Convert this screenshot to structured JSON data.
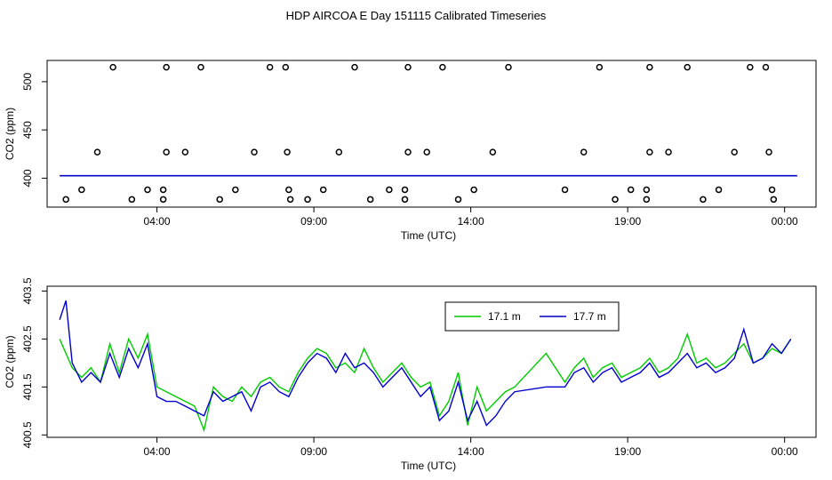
{
  "title": "HDP AIRCOA E  Day 151115  Calibrated Timeseries",
  "colors": {
    "series_a": "#00cc00",
    "series_b": "#0000cc",
    "axis": "#000000"
  },
  "chart_data": [
    {
      "type": "scatter",
      "xlabel": "Time (UTC)",
      "ylabel": "CO2 (ppm)",
      "xlim": [
        -0.5,
        24.0
      ],
      "ylim": [
        370,
        522
      ],
      "xticks": [
        3,
        8,
        13,
        18,
        23
      ],
      "xtick_labels": [
        "04:00",
        "09:00",
        "14:00",
        "19:00",
        "00:00"
      ],
      "yticks": [
        400,
        450,
        500
      ],
      "grid": false,
      "points": [
        {
          "x": 0.1,
          "y": 378
        },
        {
          "x": 0.6,
          "y": 388
        },
        {
          "x": 1.1,
          "y": 427
        },
        {
          "x": 1.6,
          "y": 515
        },
        {
          "x": 2.2,
          "y": 378
        },
        {
          "x": 2.7,
          "y": 388
        },
        {
          "x": 3.2,
          "y": 378
        },
        {
          "x": 3.2,
          "y": 388
        },
        {
          "x": 3.3,
          "y": 427
        },
        {
          "x": 3.3,
          "y": 515
        },
        {
          "x": 3.9,
          "y": 427
        },
        {
          "x": 4.4,
          "y": 515
        },
        {
          "x": 5.0,
          "y": 378
        },
        {
          "x": 5.5,
          "y": 388
        },
        {
          "x": 6.1,
          "y": 427
        },
        {
          "x": 6.6,
          "y": 515
        },
        {
          "x": 7.1,
          "y": 515
        },
        {
          "x": 7.15,
          "y": 427
        },
        {
          "x": 7.2,
          "y": 388
        },
        {
          "x": 7.25,
          "y": 378
        },
        {
          "x": 7.8,
          "y": 378
        },
        {
          "x": 8.3,
          "y": 388
        },
        {
          "x": 8.8,
          "y": 427
        },
        {
          "x": 9.3,
          "y": 515
        },
        {
          "x": 9.8,
          "y": 378
        },
        {
          "x": 10.4,
          "y": 388
        },
        {
          "x": 10.9,
          "y": 378
        },
        {
          "x": 10.9,
          "y": 388
        },
        {
          "x": 11.0,
          "y": 427
        },
        {
          "x": 11.0,
          "y": 515
        },
        {
          "x": 11.6,
          "y": 427
        },
        {
          "x": 12.1,
          "y": 515
        },
        {
          "x": 12.6,
          "y": 378
        },
        {
          "x": 13.1,
          "y": 388
        },
        {
          "x": 13.7,
          "y": 427
        },
        {
          "x": 14.2,
          "y": 515
        },
        {
          "x": 16.0,
          "y": 388
        },
        {
          "x": 16.6,
          "y": 427
        },
        {
          "x": 17.1,
          "y": 515
        },
        {
          "x": 17.6,
          "y": 378
        },
        {
          "x": 18.1,
          "y": 388
        },
        {
          "x": 18.6,
          "y": 378
        },
        {
          "x": 18.6,
          "y": 388
        },
        {
          "x": 18.7,
          "y": 427
        },
        {
          "x": 18.7,
          "y": 515
        },
        {
          "x": 19.3,
          "y": 427
        },
        {
          "x": 19.9,
          "y": 515
        },
        {
          "x": 20.4,
          "y": 378
        },
        {
          "x": 20.9,
          "y": 388
        },
        {
          "x": 21.4,
          "y": 427
        },
        {
          "x": 21.9,
          "y": 515
        },
        {
          "x": 22.4,
          "y": 515
        },
        {
          "x": 22.5,
          "y": 427
        },
        {
          "x": 22.6,
          "y": 388
        },
        {
          "x": 22.65,
          "y": 378
        }
      ],
      "series": [
        {
          "x": [
            -0.1,
            23.4
          ],
          "y": [
            402.5,
            402.5
          ],
          "style": "line"
        }
      ]
    },
    {
      "type": "line",
      "xlabel": "Time (UTC)",
      "ylabel": "CO2 (ppm)",
      "xlim": [
        -0.5,
        24.0
      ],
      "ylim": [
        400.45,
        403.6
      ],
      "xticks": [
        3,
        8,
        13,
        18,
        23
      ],
      "xtick_labels": [
        "04:00",
        "09:00",
        "14:00",
        "19:00",
        "00:00"
      ],
      "yticks": [
        400.5,
        401.5,
        402.5,
        403.5
      ],
      "grid": false,
      "legend": "top-center",
      "series": [
        {
          "name": "17.1 m",
          "x": [
            -0.1,
            0.1,
            0.3,
            0.6,
            0.9,
            1.2,
            1.5,
            1.8,
            2.1,
            2.4,
            2.7,
            3.0,
            3.3,
            3.6,
            3.9,
            4.2,
            4.5,
            4.8,
            5.1,
            5.4,
            5.7,
            6.0,
            6.3,
            6.6,
            6.9,
            7.2,
            7.5,
            7.8,
            8.1,
            8.4,
            8.7,
            9.0,
            9.3,
            9.6,
            9.9,
            10.2,
            10.5,
            10.8,
            11.1,
            11.4,
            11.7,
            12.0,
            12.3,
            12.6,
            12.9,
            13.2,
            13.5,
            13.8,
            14.1,
            14.4,
            15.4,
            16.0,
            16.3,
            16.6,
            16.9,
            17.2,
            17.5,
            17.8,
            18.1,
            18.4,
            18.7,
            19.0,
            19.3,
            19.6,
            19.9,
            20.2,
            20.5,
            20.8,
            21.1,
            21.4,
            21.7,
            22.0,
            22.3,
            22.6,
            22.9,
            23.2
          ],
          "y": [
            402.5,
            402.2,
            401.9,
            401.7,
            401.9,
            401.6,
            402.4,
            401.8,
            402.5,
            402.1,
            402.6,
            401.5,
            401.4,
            401.3,
            401.2,
            401.1,
            400.6,
            401.5,
            401.3,
            401.2,
            401.5,
            401.3,
            401.6,
            401.7,
            401.5,
            401.4,
            401.8,
            402.1,
            402.3,
            402.2,
            401.9,
            402.0,
            401.8,
            402.3,
            401.9,
            401.6,
            401.8,
            402.0,
            401.7,
            401.5,
            401.6,
            400.9,
            401.2,
            401.8,
            400.7,
            401.5,
            401.0,
            401.2,
            401.4,
            401.5,
            402.2,
            401.6,
            401.9,
            402.1,
            401.7,
            401.9,
            402.0,
            401.7,
            401.8,
            401.9,
            402.1,
            401.8,
            401.9,
            402.1,
            402.6,
            402.0,
            402.1,
            401.9,
            402.0,
            402.2,
            402.4,
            402.0,
            402.1,
            402.3,
            402.2,
            402.5
          ]
        },
        {
          "name": "17.7 m",
          "x": [
            -0.1,
            0.1,
            0.3,
            0.6,
            0.9,
            1.2,
            1.5,
            1.8,
            2.1,
            2.4,
            2.7,
            3.0,
            3.3,
            3.6,
            3.9,
            4.2,
            4.5,
            4.8,
            5.1,
            5.4,
            5.7,
            6.0,
            6.3,
            6.6,
            6.9,
            7.2,
            7.5,
            7.8,
            8.1,
            8.4,
            8.7,
            9.0,
            9.3,
            9.6,
            9.9,
            10.2,
            10.5,
            10.8,
            11.1,
            11.4,
            11.7,
            12.0,
            12.3,
            12.6,
            12.9,
            13.2,
            13.5,
            13.8,
            14.1,
            14.4,
            15.4,
            16.0,
            16.3,
            16.6,
            16.9,
            17.2,
            17.5,
            17.8,
            18.1,
            18.4,
            18.7,
            19.0,
            19.3,
            19.6,
            19.9,
            20.2,
            20.5,
            20.8,
            21.1,
            21.4,
            21.7,
            22.0,
            22.3,
            22.6,
            22.9,
            23.2
          ],
          "y": [
            402.9,
            403.3,
            402.0,
            401.6,
            401.8,
            401.6,
            402.2,
            401.7,
            402.3,
            401.9,
            402.4,
            401.3,
            401.2,
            401.2,
            401.1,
            401.0,
            400.9,
            401.4,
            401.2,
            401.3,
            401.4,
            401.0,
            401.5,
            401.6,
            401.4,
            401.3,
            401.7,
            402.0,
            402.2,
            402.1,
            401.8,
            402.2,
            401.9,
            402.0,
            401.8,
            401.5,
            401.7,
            401.9,
            401.6,
            401.3,
            401.5,
            400.8,
            401.0,
            401.6,
            400.8,
            401.2,
            400.7,
            400.9,
            401.2,
            401.4,
            401.5,
            401.5,
            401.8,
            401.9,
            401.6,
            401.8,
            401.9,
            401.6,
            401.7,
            401.8,
            402.0,
            401.7,
            401.8,
            402.0,
            402.2,
            401.9,
            402.0,
            401.8,
            401.9,
            402.1,
            402.7,
            402.0,
            402.1,
            402.4,
            402.2,
            402.5
          ]
        }
      ]
    }
  ]
}
